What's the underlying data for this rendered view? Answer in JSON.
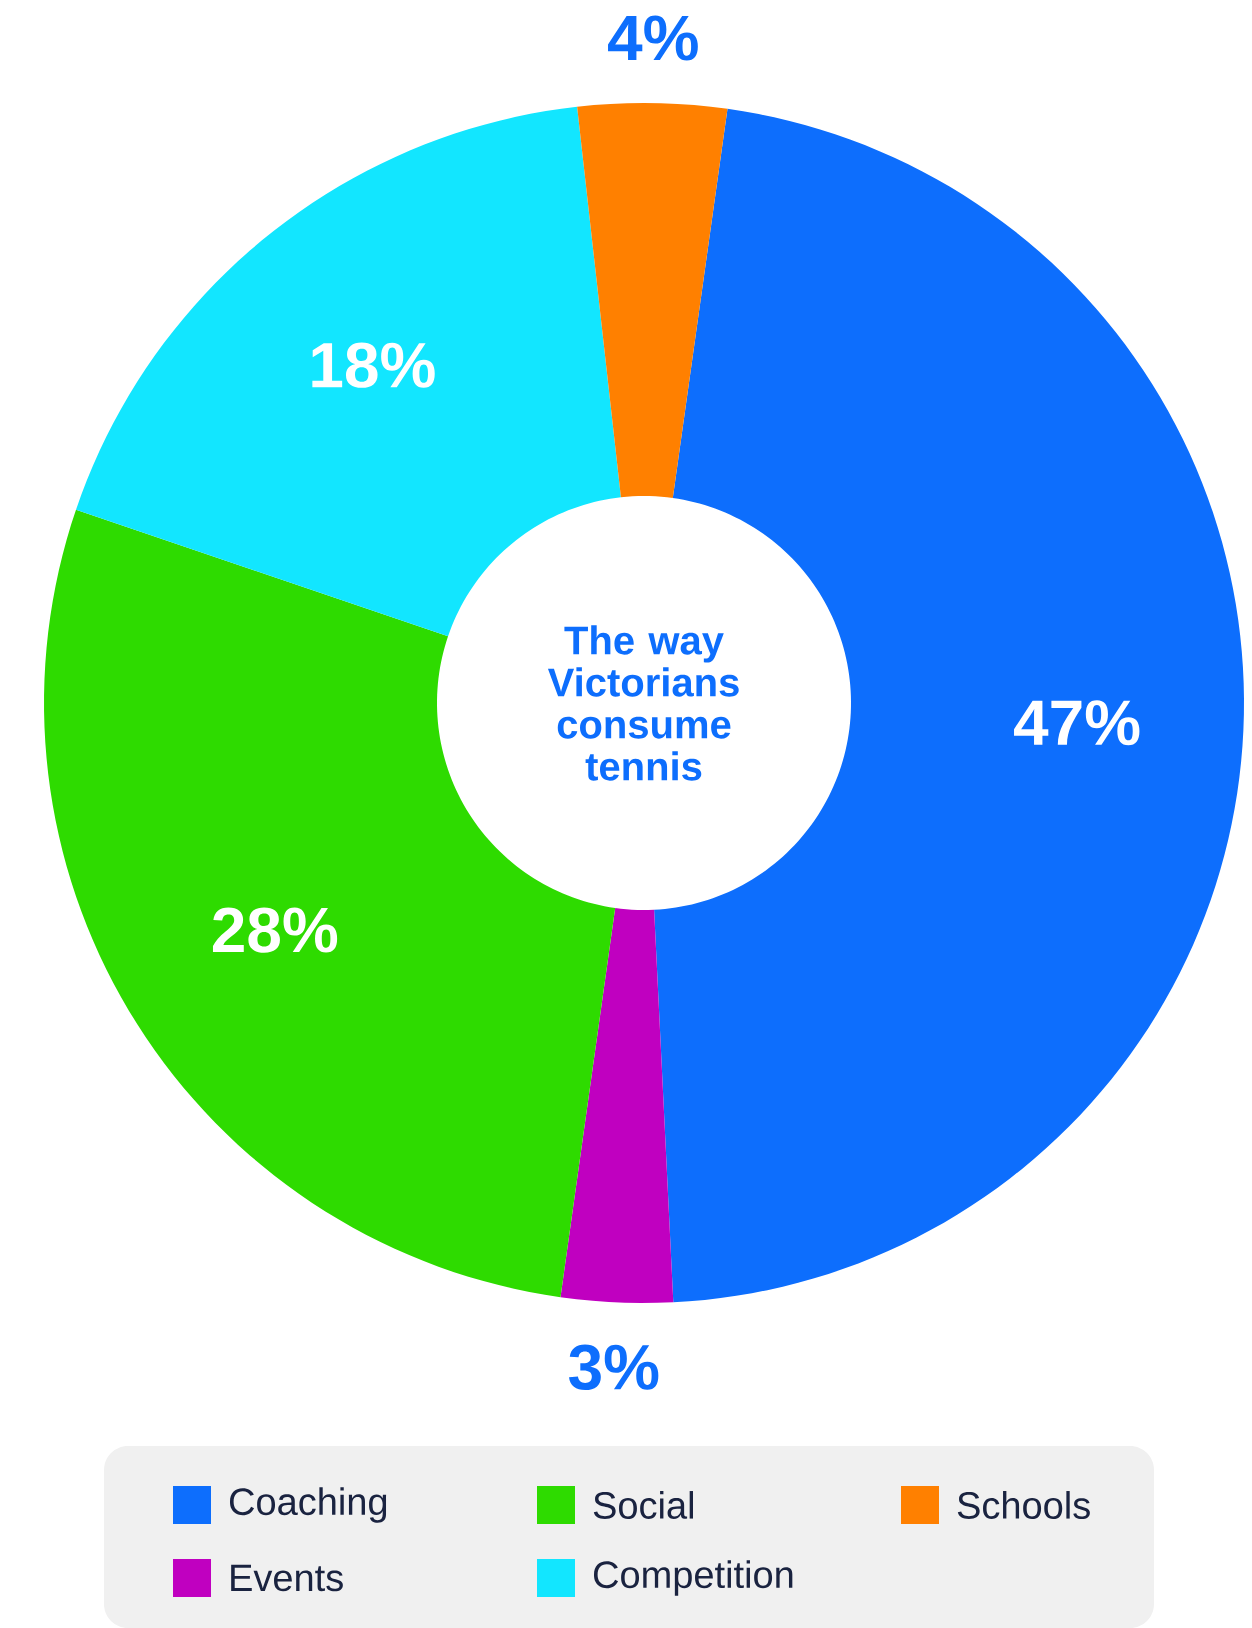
{
  "chart_data": {
    "type": "donut",
    "title": "The way Victorians consume tennis",
    "categories": [
      "Coaching",
      "Events",
      "Social",
      "Competition",
      "Schools"
    ],
    "values": [
      47,
      3,
      28,
      18,
      4
    ],
    "value_labels": [
      "47%",
      "3%",
      "28%",
      "18%",
      "4%"
    ],
    "colors": [
      "#0d6efd",
      "#c000c0",
      "#2edb00",
      "#12e6ff",
      "#ff8000"
    ],
    "legend": "bottom"
  }
}
